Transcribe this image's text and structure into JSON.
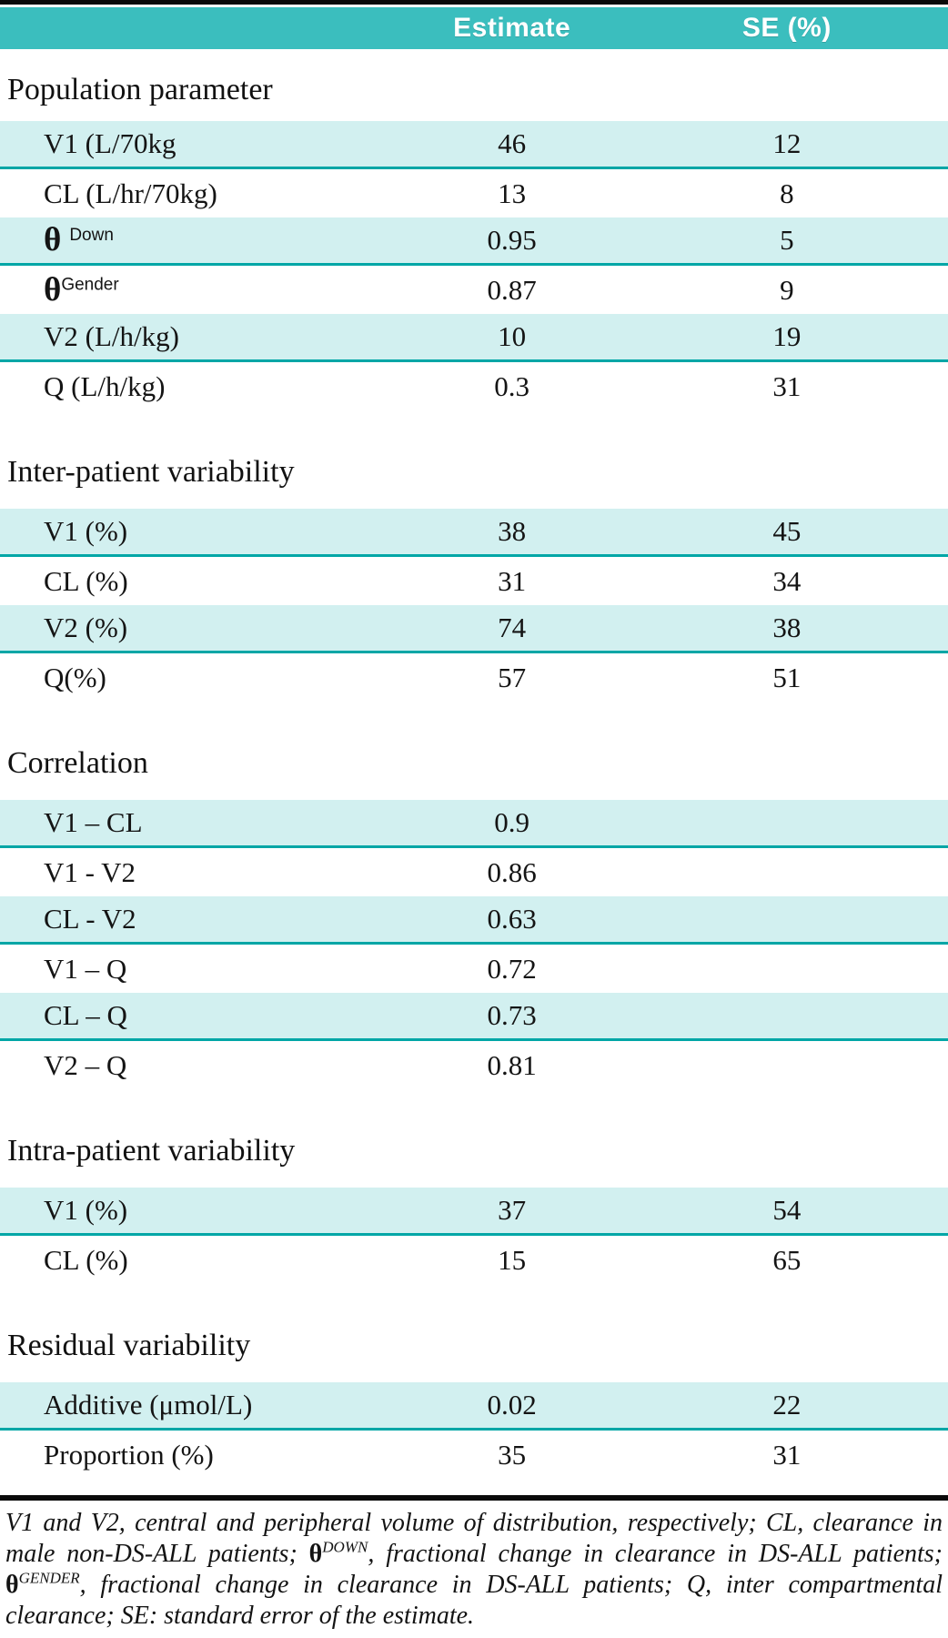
{
  "colors": {
    "header_teal": "#3bbebe",
    "row_cyan": "#d2f0f0",
    "row_underline_teal": "#00a6a6",
    "rule_black": "#0a0a0a",
    "text": "#141414"
  },
  "table": {
    "columns": [
      "Estimate",
      "SE (%)"
    ],
    "sections": [
      {
        "title": "Population parameter",
        "rows": [
          {
            "label": "V1 (L/70kg",
            "estimate": "46",
            "se": "12"
          },
          {
            "label": "CL (L/hr/70kg)",
            "estimate": "13",
            "se": "8"
          },
          {
            "label": "θ",
            "label_sup": "Down",
            "sup_gap": true,
            "estimate": "0.95",
            "se": "5"
          },
          {
            "label": "θ",
            "label_sup": "Gender",
            "estimate": "0.87",
            "se": "9"
          },
          {
            "label": "V2 (L/h/kg)",
            "estimate": "10",
            "se": "19"
          },
          {
            "label": "Q (L/h/kg)",
            "estimate": "0.3",
            "se": "31"
          }
        ]
      },
      {
        "title": "Inter-patient variability",
        "rows": [
          {
            "label": "V1 (%)",
            "estimate": "38",
            "se": "45"
          },
          {
            "label": "CL (%)",
            "estimate": "31",
            "se": "34"
          },
          {
            "label": "V2 (%)",
            "estimate": "74",
            "se": "38"
          },
          {
            "label": "Q(%)",
            "estimate": "57",
            "se": "51"
          }
        ]
      },
      {
        "title": "Correlation",
        "rows": [
          {
            "label": "V1 – CL",
            "estimate": "0.9",
            "se": ""
          },
          {
            "label": "V1 - V2",
            "estimate": "0.86",
            "se": ""
          },
          {
            "label": "CL - V2",
            "estimate": "0.63",
            "se": ""
          },
          {
            "label": "V1 – Q",
            "estimate": "0.72",
            "se": ""
          },
          {
            "label": "CL – Q",
            "estimate": "0.73",
            "se": ""
          },
          {
            "label": "V2 – Q",
            "estimate": "0.81",
            "se": ""
          }
        ]
      },
      {
        "title": "Intra-patient variability",
        "rows": [
          {
            "label": "V1 (%)",
            "estimate": "37",
            "se": "54"
          },
          {
            "label": "CL (%)",
            "estimate": "15",
            "se": "65"
          }
        ]
      },
      {
        "title": "Residual variability",
        "rows": [
          {
            "label": "Additive (μmol/L)",
            "estimate": "0.02",
            "se": "22"
          },
          {
            "label": "Proportion (%)",
            "estimate": "35",
            "se": "31"
          }
        ]
      }
    ]
  },
  "footnote": {
    "segments": [
      {
        "text": "V1 and V2, central and peripheral volume of distribution, respectively; CL, clearance in male non-DS-ALL patients; "
      },
      {
        "text": "θ",
        "kind": "theta"
      },
      {
        "text": "DOWN",
        "kind": "sup"
      },
      {
        "text": ", fractional change in clearance in DS-ALL patients; "
      },
      {
        "text": "θ",
        "kind": "theta"
      },
      {
        "text": "GENDER",
        "kind": "sup"
      },
      {
        "text": ", fractional change in clearance in DS-ALL patients; Q, inter compartmental clearance; SE: standard error of the estimate."
      }
    ]
  }
}
